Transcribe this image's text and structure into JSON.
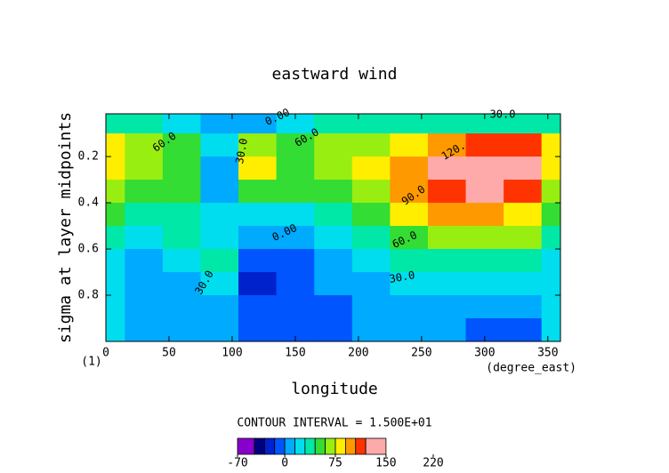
{
  "chart_data": {
    "type": "contour",
    "title": "eastward wind",
    "x_label": "longitude",
    "x_units": "(degree_east)",
    "y_label": "sigma at layer midpoints",
    "y_units": "(1)",
    "contour_interval_label": "CONTOUR INTERVAL = 1.500E+01",
    "x": [
      0,
      30,
      60,
      90,
      120,
      150,
      180,
      210,
      240,
      270,
      300,
      330,
      360
    ],
    "y": [
      0.05,
      0.15,
      0.25,
      0.35,
      0.45,
      0.55,
      0.65,
      0.75,
      0.85,
      0.95
    ],
    "values": [
      [
        40,
        40,
        25,
        5,
        0,
        20,
        40,
        40,
        40,
        40,
        40,
        40,
        40
      ],
      [
        80,
        70,
        55,
        20,
        60,
        55,
        65,
        70,
        85,
        100,
        110,
        105,
        80
      ],
      [
        85,
        70,
        55,
        10,
        80,
        55,
        65,
        75,
        95,
        120,
        140,
        130,
        85
      ],
      [
        65,
        55,
        45,
        10,
        50,
        45,
        55,
        70,
        90,
        115,
        125,
        115,
        65
      ],
      [
        50,
        40,
        35,
        15,
        20,
        25,
        40,
        55,
        75,
        90,
        95,
        85,
        50
      ],
      [
        35,
        25,
        30,
        25,
        0,
        10,
        25,
        40,
        55,
        65,
        65,
        60,
        35
      ],
      [
        25,
        10,
        20,
        30,
        -10,
        -5,
        10,
        20,
        30,
        40,
        40,
        35,
        25
      ],
      [
        25,
        5,
        10,
        20,
        -20,
        -15,
        0,
        10,
        15,
        20,
        20,
        20,
        25
      ],
      [
        20,
        5,
        5,
        10,
        -10,
        -10,
        -5,
        5,
        10,
        5,
        5,
        0,
        20
      ],
      [
        15,
        5,
        5,
        5,
        -5,
        -5,
        -5,
        0,
        5,
        0,
        -10,
        -15,
        15
      ]
    ],
    "xlim": [
      0,
      360
    ],
    "xticks": [
      0,
      50,
      100,
      150,
      200,
      250,
      300,
      350
    ],
    "ylim": [
      1,
      0.015
    ],
    "yticks": [
      0.2,
      0.4,
      0.6,
      0.8
    ],
    "levels": [
      -70,
      -45,
      -30,
      -15,
      0,
      15,
      30,
      45,
      60,
      75,
      90,
      105,
      120,
      150,
      220
    ],
    "colors": [
      "#8800cc",
      "#000080",
      "#0022cc",
      "#0055ff",
      "#00aaff",
      "#00ddee",
      "#00e8a8",
      "#33dd33",
      "#99ee11",
      "#ffee00",
      "#ff9900",
      "#ff3300",
      "#ffaaaa"
    ],
    "colorbar_ticks": [
      -70,
      0,
      75,
      150,
      220
    ],
    "contour_labels": [
      "30.0",
      "120.",
      "90.0",
      "60.0",
      "30.0",
      "60.0",
      "0.00",
      "30.0",
      "60.0",
      "0.00",
      "30.0"
    ]
  }
}
